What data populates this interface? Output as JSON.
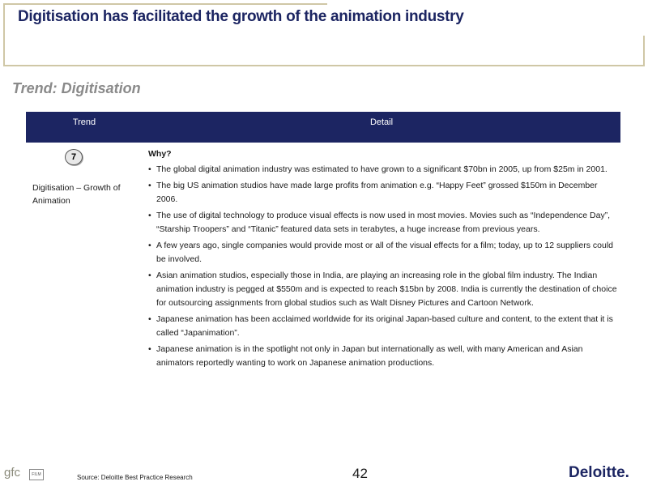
{
  "slide": {
    "title": "Digitisation has facilitated the growth of the animation industry",
    "subtitle": "Trend: Digitisation"
  },
  "table": {
    "headers": {
      "trend": "Trend",
      "detail": "Detail"
    },
    "row": {
      "badge": "7",
      "trend_name": "Digitisation – Growth of Animation",
      "why_label": "Why?",
      "bullets": [
        "The global digital animation industry was estimated to have grown to a significant $70bn in 2005, up from $25m in 2001.",
        "The big US animation studios have made large profits from animation e.g. “Happy Feet” grossed $150m in December 2006.",
        "The use of digital technology to produce visual effects is now used in most movies.  Movies such as “Independence Day”, “Starship Troopers” and “Titanic” featured data sets in terabytes, a huge increase from previous years.",
        "A few years ago, single companies would provide most or all of the visual effects for a film; today, up to 12 suppliers could be involved.",
        "Asian animation studios, especially those in India, are playing an increasing role in the global film industry. The Indian animation industry is pegged at $550m and is expected to reach $15bn by 2008. India is currently the destination of choice for outsourcing assignments from global studios such as Walt Disney Pictures and Cartoon Network.",
        "Japanese animation has been acclaimed worldwide for  its original Japan-based culture and content, to the extent that it is called “Japanimation”.",
        "Japanese animation is in the spotlight not only in Japan but internationally as well, with many American and Asian animators reportedly wanting to work on Japanese animation productions."
      ]
    }
  },
  "footer": {
    "source": "Source: Deloitte Best Practice Research",
    "page_number": "42",
    "left_logo_text": "gfc",
    "left_logo_badge": "FILM",
    "right_logo_text": "Deloitte."
  },
  "colors": {
    "navy": "#1c2562",
    "frame": "#cfc7a6",
    "subtitle_gray": "#8a8a8a"
  }
}
